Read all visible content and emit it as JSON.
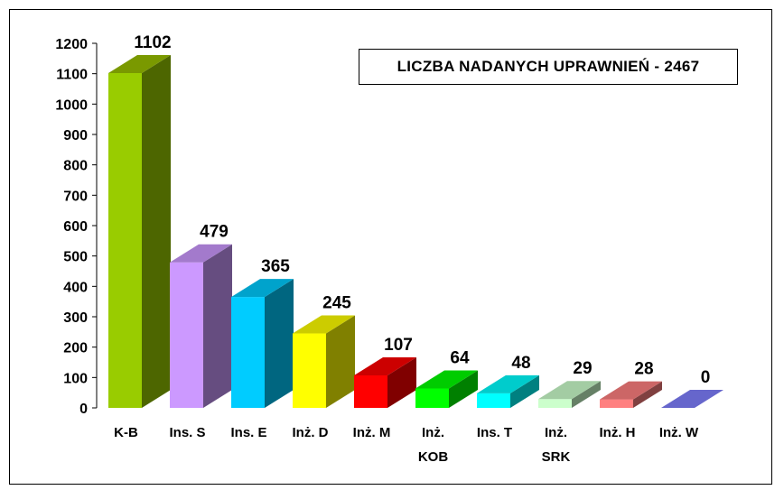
{
  "chart_data": {
    "type": "bar",
    "title": "LICZBA NADANYCH UPRAWNIEŃ - 2467",
    "categories": [
      [
        "K-B"
      ],
      [
        "Ins. S"
      ],
      [
        "Ins. E"
      ],
      [
        "Inż. D"
      ],
      [
        "Inż. M"
      ],
      [
        "Inż.",
        "KOB"
      ],
      [
        "Ins. T"
      ],
      [
        "Inż.",
        "SRK"
      ],
      [
        "Inż. H"
      ],
      [
        "Inż. W"
      ]
    ],
    "values": [
      1102,
      479,
      365,
      245,
      107,
      64,
      48,
      29,
      28,
      0
    ],
    "colors": [
      {
        "front": "#99cc00",
        "side": "#4d6600",
        "top": "#7a9900"
      },
      {
        "front": "#cc99ff",
        "side": "#664d80",
        "top": "#a37acc"
      },
      {
        "front": "#00ccff",
        "side": "#006680",
        "top": "#00a3cc"
      },
      {
        "front": "#ffff00",
        "side": "#808000",
        "top": "#cccc00"
      },
      {
        "front": "#ff0000",
        "side": "#800000",
        "top": "#cc0000"
      },
      {
        "front": "#00ff00",
        "side": "#008000",
        "top": "#00cc00"
      },
      {
        "front": "#00ffff",
        "side": "#008080",
        "top": "#00cccc"
      },
      {
        "front": "#ccffcc",
        "side": "#668066",
        "top": "#a3cca3"
      },
      {
        "front": "#ff8080",
        "side": "#804040",
        "top": "#cc6666"
      },
      {
        "front": "#8080ff",
        "side": "#404080",
        "top": "#6666cc"
      }
    ],
    "ylim": [
      0,
      1200
    ],
    "yticks": [
      0,
      100,
      200,
      300,
      400,
      500,
      600,
      700,
      800,
      900,
      1000,
      1100,
      1200
    ],
    "xlabel": "",
    "ylabel": "",
    "grid": false
  }
}
